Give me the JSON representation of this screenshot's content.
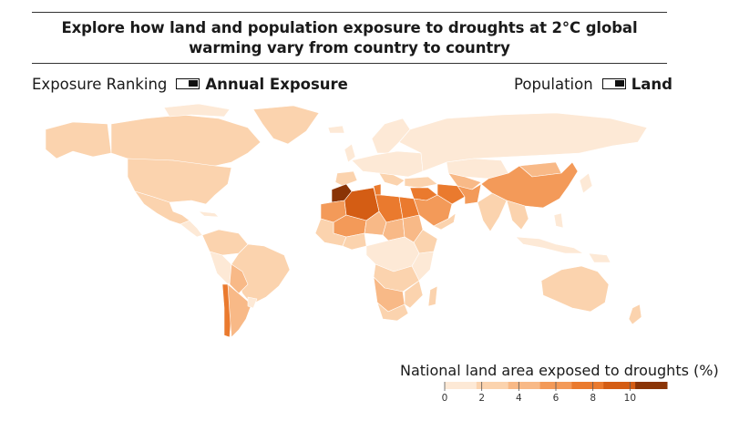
{
  "title": "Explore how land and population exposure to droughts at 2°C global warming vary from country to country",
  "controls": {
    "left_label": "Exposure Ranking",
    "left_selected": "Annual Exposure",
    "right_label": "Population",
    "right_selected": "Land"
  },
  "legend": {
    "title": "National land area exposed to droughts (%)",
    "ticks": [
      "0",
      "2",
      "4",
      "6",
      "8",
      "10"
    ],
    "min": 0,
    "max": 12
  },
  "colors": {
    "low": "#fde9d6",
    "c1": "#fbd3ae",
    "c2": "#f8b987",
    "c3": "#f39a59",
    "c4": "#ea7a2e",
    "c5": "#d45d14",
    "high": "#8a3406",
    "border": "#ffffff"
  }
}
